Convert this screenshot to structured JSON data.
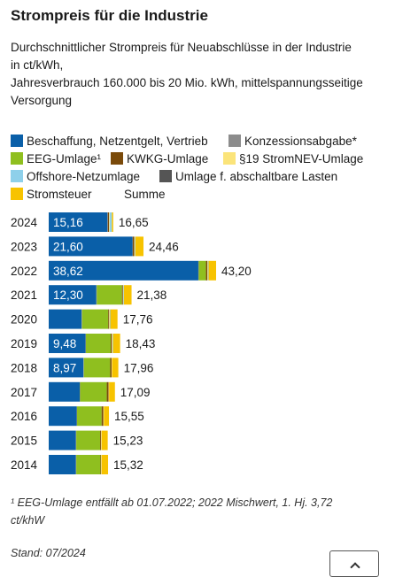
{
  "header": {
    "title": "Strompreis für die Industrie",
    "subtitle_lines": [
      "Durchschnittlicher Strompreis für Neuabschlüsse in der Industrie",
      "in ct/kWh,",
      "Jahresverbrauch 160.000 bis 20 Mio. kWh, mittelspannungsseitige",
      "Versorgung"
    ]
  },
  "legend": [
    {
      "label": "Beschaffung, Netzentgelt, Vertrieb",
      "color": "#0a5fa8"
    },
    {
      "label": "Konzessionsabgabe*",
      "color": "#8c8c8c"
    },
    {
      "label": "EEG-Umlage¹",
      "color": "#8fbf1f"
    },
    {
      "label": "KWKG-Umlage",
      "color": "#7a4a0a"
    },
    {
      "label": "§19 StromNEV-Umlage",
      "color": "#fbe47a"
    },
    {
      "label": "Offshore-Netzumlage",
      "color": "#8ed0ea"
    },
    {
      "label": "Umlage f. abschaltbare Lasten",
      "color": "#555555"
    },
    {
      "label": "Stromsteuer",
      "color": "#f7c300"
    },
    {
      "label": "Summe",
      "color": ""
    }
  ],
  "chart_data": {
    "type": "bar",
    "orientation": "horizontal",
    "stacked": true,
    "unit": "ct/kWh",
    "categories": [
      "2024",
      "2023",
      "2022",
      "2021",
      "2020",
      "2019",
      "2018",
      "2017",
      "2016",
      "2015",
      "2014"
    ],
    "series": [
      {
        "name": "Beschaffung, Netzentgelt, Vertrieb",
        "color": "#0a5fa8",
        "values": [
          15.16,
          21.6,
          38.62,
          12.3,
          8.5,
          9.48,
          8.97,
          8.0,
          7.2,
          7.0,
          7.0
        ],
        "labels": [
          "15,16",
          "21,60",
          "38,62",
          "12,30",
          "",
          "9,48",
          "8,97",
          "",
          "",
          "",
          ""
        ]
      },
      {
        "name": "Konzessionsabgabe*",
        "color": "#8c8c8c",
        "values": [
          0.11,
          0.11,
          0.11,
          0.11,
          0.11,
          0.11,
          0.11,
          0.11,
          0.11,
          0.11,
          0.11
        ]
      },
      {
        "name": "EEG-Umlage¹",
        "color": "#8fbf1f",
        "values": [
          0,
          0,
          1.86,
          6.5,
          6.76,
          6.41,
          6.79,
          6.88,
          6.35,
          6.17,
          6.24
        ]
      },
      {
        "name": "KWKG-Umlage",
        "color": "#7a4a0a",
        "values": [
          0.28,
          0.36,
          0.38,
          0.25,
          0.23,
          0.28,
          0.35,
          0.44,
          0.45,
          0.25,
          0.18
        ]
      },
      {
        "name": "§19 StromNEV-Umlage",
        "color": "#fbe47a",
        "values": [
          0.15,
          0.15,
          0.14,
          0.13,
          0.15,
          0.17,
          0.15,
          0.15,
          0.15,
          0.15,
          0.15
        ]
      },
      {
        "name": "Offshore-Netzumlage",
        "color": "#8ed0ea",
        "values": [
          0.6,
          0.14,
          0.14,
          0.14,
          0.14,
          0.14,
          0.0,
          0.0,
          0.0,
          0.0,
          0.0
        ]
      },
      {
        "name": "Umlage f. abschaltbare Lasten",
        "color": "#555555",
        "values": [
          0.0,
          0.0,
          0.0,
          0.0,
          0.0,
          0.0,
          0.0,
          0.0,
          0.0,
          0.0,
          0.0
        ]
      },
      {
        "name": "Stromsteuer",
        "color": "#f7c300",
        "values": [
          0.35,
          2.1,
          1.95,
          1.95,
          1.87,
          1.84,
          1.59,
          1.51,
          1.29,
          1.55,
          1.64
        ]
      }
    ],
    "totals": [
      16.65,
      24.46,
      43.2,
      21.38,
      17.76,
      18.43,
      17.96,
      17.09,
      15.55,
      15.23,
      15.32
    ],
    "total_labels": [
      "16,65",
      "24,46",
      "43,20",
      "21,38",
      "17,76",
      "18,43",
      "17,96",
      "17,09",
      "15,55",
      "15,23",
      "15,32"
    ],
    "xlim": [
      0,
      43.2
    ]
  },
  "footnote": {
    "lines": [
      "¹ EEG-Umlage entfällt ab 01.07.2022; 2022 Mischwert, 1. Hj. 3,72",
      "ct/khW"
    ]
  },
  "stand": "Stand: 07/2024"
}
